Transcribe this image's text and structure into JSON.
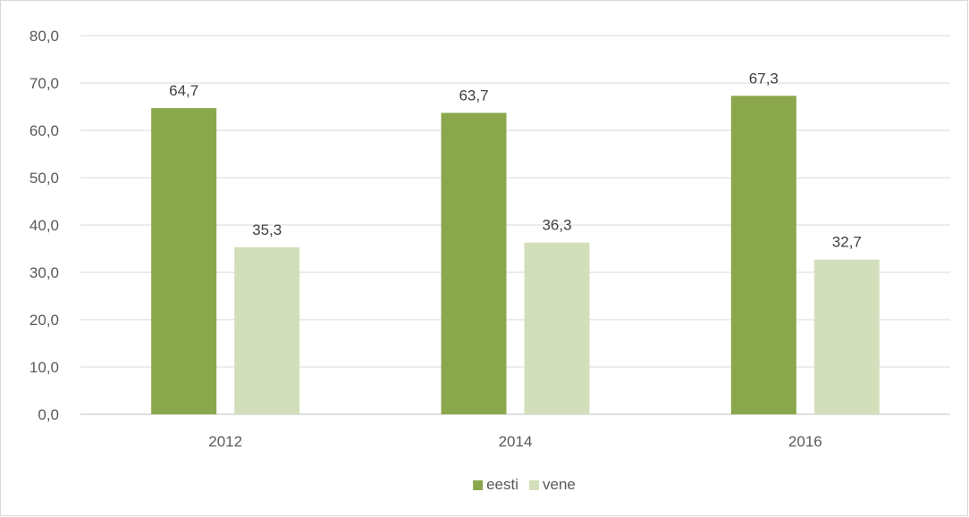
{
  "chart_data": {
    "type": "bar",
    "title": "",
    "xlabel": "",
    "ylabel": "",
    "categories": [
      "2012",
      "2014",
      "2016"
    ],
    "series": [
      {
        "name": "eesti",
        "values": [
          64.7,
          63.7,
          67.3
        ],
        "labels": [
          "64,7",
          "63,7",
          "67,3"
        ],
        "color": "#8aa74c"
      },
      {
        "name": "vene",
        "values": [
          35.3,
          36.3,
          32.7
        ],
        "labels": [
          "35,3",
          "36,3",
          "32,7"
        ],
        "color": "#d3dfbb"
      }
    ],
    "ylim": [
      0,
      80
    ],
    "yticks": [
      "0,0",
      "10,0",
      "20,0",
      "30,0",
      "40,0",
      "50,0",
      "60,0",
      "70,0",
      "80,0"
    ],
    "grid": true,
    "legend_position": "bottom"
  }
}
